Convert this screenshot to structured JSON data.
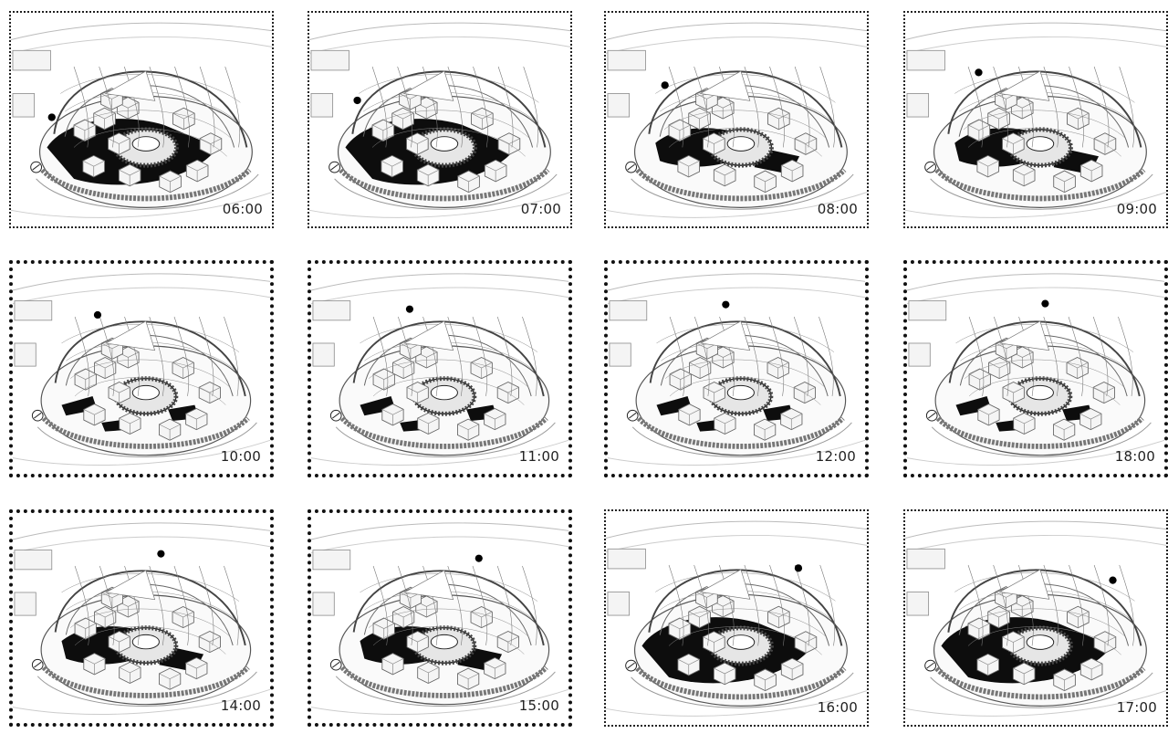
{
  "panels": [
    {
      "time": "06:00",
      "shadow": "heavy",
      "sun": 0.0,
      "border": "fine"
    },
    {
      "time": "07:00",
      "shadow": "heavy",
      "sun": 0.08,
      "border": "fine"
    },
    {
      "time": "08:00",
      "shadow": "medium",
      "sun": 0.16,
      "border": "fine"
    },
    {
      "time": "09:00",
      "shadow": "medium",
      "sun": 0.24,
      "border": "fine"
    },
    {
      "time": "10:00",
      "shadow": "light",
      "sun": 0.3,
      "border": "heavy"
    },
    {
      "time": "11:00",
      "shadow": "light",
      "sun": 0.36,
      "border": "heavy"
    },
    {
      "time": "12:00",
      "shadow": "light",
      "sun": 0.44,
      "border": "heavy"
    },
    {
      "time": "18:00",
      "shadow": "light",
      "sun": 0.52,
      "border": "heavy"
    },
    {
      "time": "14:00",
      "shadow": "medium",
      "sun": 0.56,
      "border": "heavy"
    },
    {
      "time": "15:00",
      "shadow": "medium",
      "sun": 0.64,
      "border": "heavy"
    },
    {
      "time": "16:00",
      "shadow": "heavy",
      "sun": 0.74,
      "border": "fine"
    },
    {
      "time": "17:00",
      "shadow": "heavy",
      "sun": 0.82,
      "border": "fine"
    }
  ]
}
